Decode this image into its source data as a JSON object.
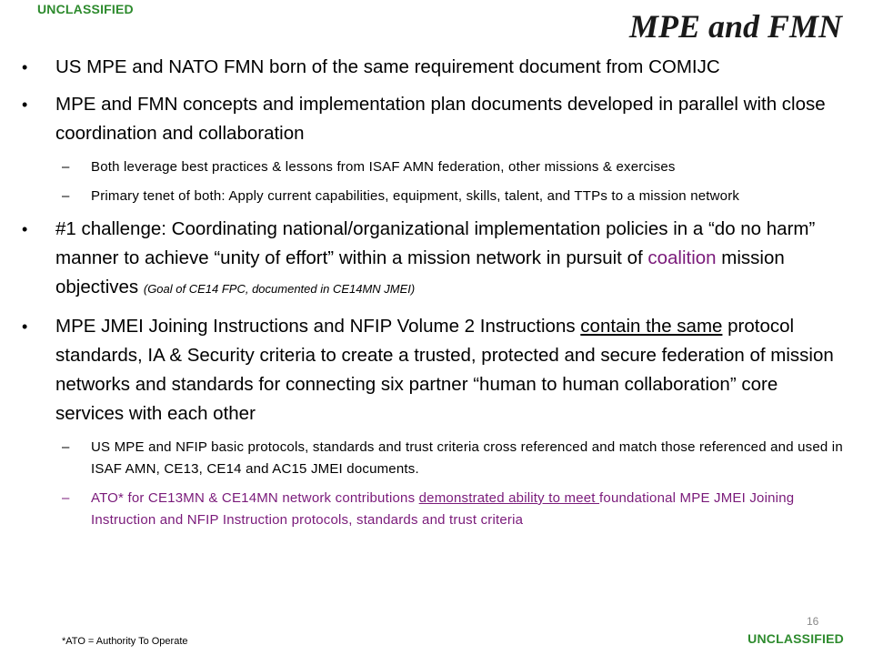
{
  "classification": {
    "top": "UNCLASSIFIED",
    "bottom": "UNCLASSIFIED"
  },
  "slide_title": "MPE and FMN",
  "bullets": {
    "b1": "US MPE and NATO FMN born of the same requirement document from COMIJC",
    "b2": "MPE and FMN concepts and implementation plan documents developed in parallel with close coordination and collaboration",
    "b2_s1": "Both leverage best practices & lessons from ISAF AMN federation, other missions & exercises",
    "b2_s2": "Primary tenet of both: Apply current capabilities, equipment, skills, talent, and TTPs to a mission network",
    "b3_pre": "#1 challenge: Coordinating national/organizational implementation policies in a “do no harm” manner to achieve “unity of effort” within a mission network in pursuit of ",
    "b3_coalition": "coalition",
    "b3_post": " mission objectives ",
    "b3_note": "(Goal of CE14 FPC, documented in CE14MN JMEI)",
    "b4_pre": "MPE JMEI Joining Instructions and NFIP Volume 2 Instructions ",
    "b4_underline": "contain the same",
    "b4_post": " protocol standards, IA & Security criteria to create a trusted, protected and secure federation of mission networks and standards for connecting six partner “human to human collaboration” core services with each other",
    "b4_s1": "US MPE and NFIP basic protocols, standards and trust criteria cross referenced  and match those referenced  and used in ISAF AMN, CE13, CE14 and AC15 JMEI documents.",
    "b4_s2_pre": "ATO* for CE13MN & CE14MN network contributions ",
    "b4_s2_underline": "demonstrated ability to meet ",
    "b4_s2_post": "foundational MPE JMEI Joining Instruction and NFIP Instruction protocols, standards and trust criteria"
  },
  "footnote": "*ATO = Authority To Operate",
  "page_number": "16",
  "colors": {
    "classification": "#2e8b2e",
    "accent_purple": "#7a1a7a"
  }
}
